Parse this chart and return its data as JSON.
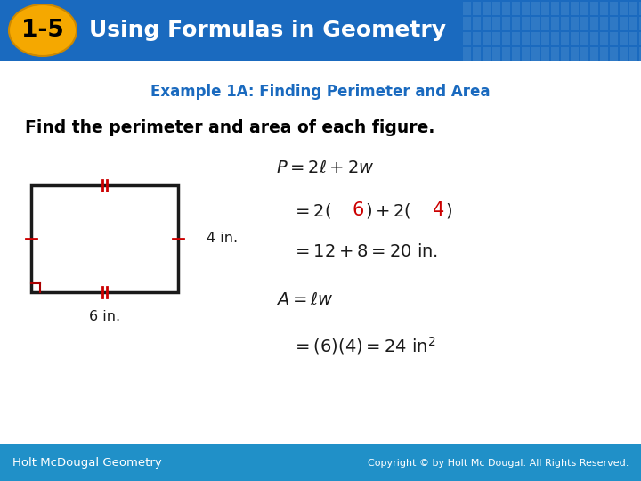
{
  "header_bg_color": "#1a6abf",
  "header_text": "Using Formulas in Geometry",
  "header_text_color": "#ffffff",
  "badge_bg_color": "#f5a800",
  "badge_text": "1-5",
  "badge_text_color": "#000000",
  "subtitle_text": "Example 1A: Finding Perimeter and Area",
  "subtitle_color": "#1a6abf",
  "body_bg_color": "#ffffff",
  "main_text": "Find the perimeter and area of each figure.",
  "main_text_color": "#000000",
  "highlight_color": "#cc0000",
  "footer_bg_color": "#2090c8",
  "footer_left": "Holt McDougal Geometry",
  "footer_right": "Copyright © by Holt Mc Dougal. All Rights Reserved.",
  "footer_text_color": "#ffffff"
}
